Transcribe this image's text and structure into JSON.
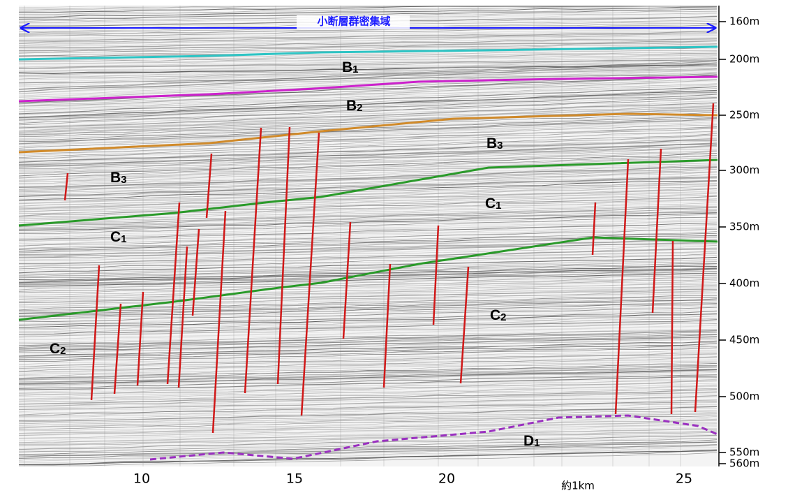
{
  "banner": {
    "text": "小断層群密集域"
  },
  "depth_axis": {
    "labels": [
      "160m",
      "200m",
      "250m",
      "300m",
      "350m",
      "400m",
      "450m",
      "500m",
      "550m",
      "560m"
    ]
  },
  "distance_axis": {
    "labels": [
      "10",
      "15",
      "20",
      "25"
    ],
    "scale_note": "約1km"
  },
  "layers": [
    {
      "base": "B",
      "sub": "1"
    },
    {
      "base": "B",
      "sub": "2"
    },
    {
      "base": "B",
      "sub": "3"
    },
    {
      "base": "B",
      "sub": "3"
    },
    {
      "base": "C",
      "sub": "1"
    },
    {
      "base": "C",
      "sub": "1"
    },
    {
      "base": "C",
      "sub": "2"
    },
    {
      "base": "C",
      "sub": "2"
    },
    {
      "base": "D",
      "sub": "1"
    }
  ]
}
